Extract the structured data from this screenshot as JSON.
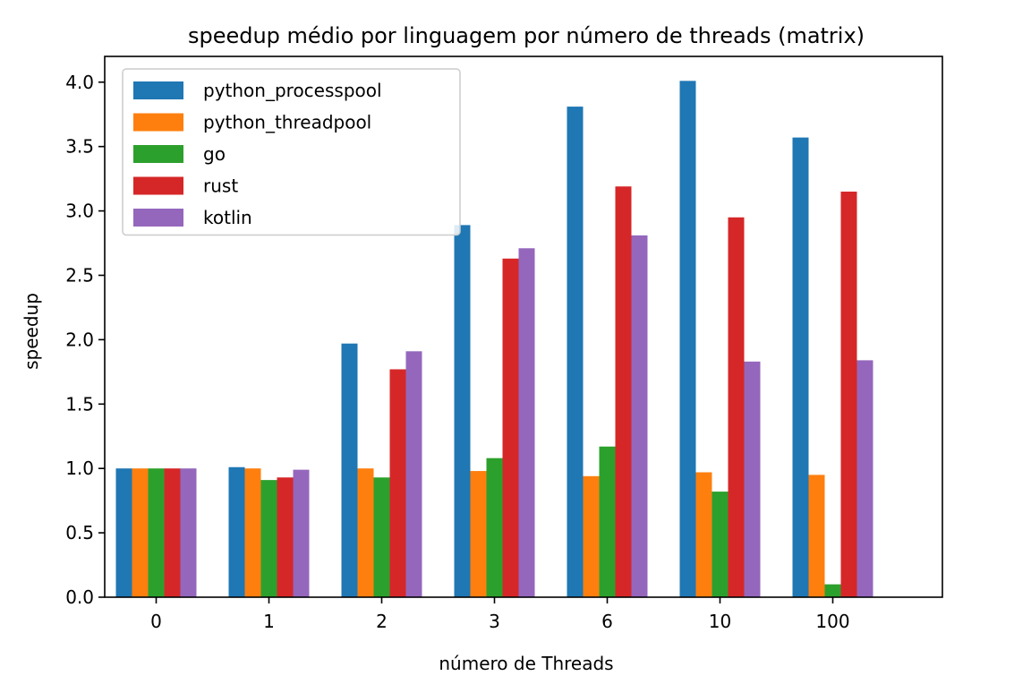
{
  "chart_data": {
    "type": "bar",
    "title": "speedup médio por linguagem por número de threads (matrix)",
    "xlabel": "número de Threads",
    "ylabel": "speedup",
    "categories": [
      "0",
      "1",
      "2",
      "3",
      "6",
      "10",
      "100"
    ],
    "ylim": [
      0,
      4.2
    ],
    "yticks": [
      "0.0",
      "0.5",
      "1.0",
      "1.5",
      "2.0",
      "2.5",
      "3.0",
      "3.5",
      "4.0"
    ],
    "legend_position": "top-left",
    "grid": false,
    "series": [
      {
        "name": "python_processpool",
        "color": "#1f77b4",
        "values": [
          1.0,
          1.01,
          1.97,
          2.89,
          3.81,
          4.01,
          3.57
        ]
      },
      {
        "name": "python_threadpool",
        "color": "#ff7f0e",
        "values": [
          1.0,
          1.0,
          1.0,
          0.98,
          0.94,
          0.97,
          0.95
        ]
      },
      {
        "name": "go",
        "color": "#2ca02c",
        "values": [
          1.0,
          0.91,
          0.93,
          1.08,
          1.17,
          0.82,
          0.1
        ]
      },
      {
        "name": "rust",
        "color": "#d62728",
        "values": [
          1.0,
          0.93,
          1.77,
          2.63,
          3.19,
          2.95,
          3.15
        ]
      },
      {
        "name": "kotlin",
        "color": "#9467bd",
        "values": [
          1.0,
          0.99,
          1.91,
          2.71,
          2.81,
          1.83,
          1.84
        ]
      }
    ]
  }
}
